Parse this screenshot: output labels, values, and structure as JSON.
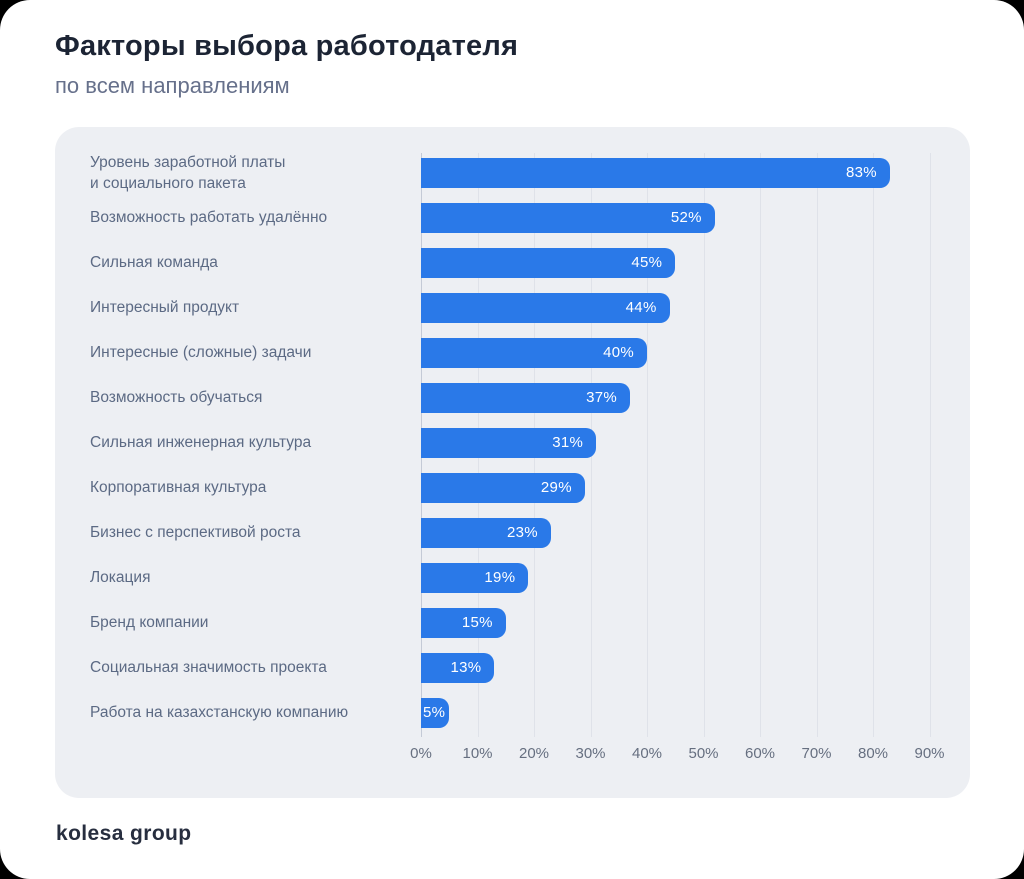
{
  "header": {
    "title": "Факторы выбора работодателя",
    "subtitle": "по всем направлениям"
  },
  "chart_data": {
    "type": "bar",
    "orientation": "horizontal",
    "title": "Факторы выбора работодателя",
    "subtitle": "по всем направлениям",
    "categories": [
      "Уровень заработной платы\nи социального пакета",
      "Возможность работать удалённо",
      "Сильная команда",
      "Интересный продукт",
      "Интересные (сложные) задачи",
      "Возможность обучаться",
      "Сильная инженерная культура",
      "Корпоративная культура",
      "Бизнес с перспективой роста",
      "Локация",
      "Бренд компании",
      "Социальная значимость проекта",
      "Работа на казахстанскую компанию"
    ],
    "values": [
      83,
      52,
      45,
      44,
      40,
      37,
      31,
      29,
      23,
      19,
      15,
      13,
      5
    ],
    "value_suffix": "%",
    "x_ticks": [
      "0%",
      "10%",
      "20%",
      "30%",
      "40%",
      "50%",
      "60%",
      "70%",
      "80%",
      "90%"
    ],
    "xlim": [
      0,
      97
    ],
    "grid": true,
    "bar_color": "#2a79e8",
    "panel_background": "#edeff3",
    "value_label_color": "#ffffff"
  },
  "footer": {
    "logo_text": "kolesa group"
  }
}
